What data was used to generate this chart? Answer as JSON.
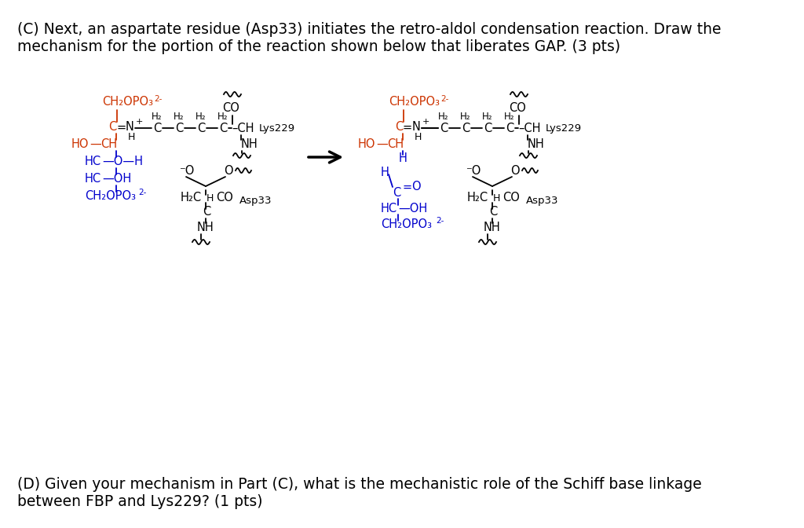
{
  "title_line1": "(C) Next, an aspartate residue (Asp33) initiates the retro-aldol condensation reaction. Draw the",
  "title_line2": "mechanism for the portion of the reaction shown below that liberates GAP. (3 pts)",
  "bottom_line1": "(D) Given your mechanism in Part (C), what is the mechanistic role of the Schiff base linkage",
  "bottom_line2": "between FBP and Lys229? (1 pts)",
  "bg_color": "#ffffff",
  "orange": "#cc3300",
  "blue": "#0000cc",
  "black": "#000000"
}
